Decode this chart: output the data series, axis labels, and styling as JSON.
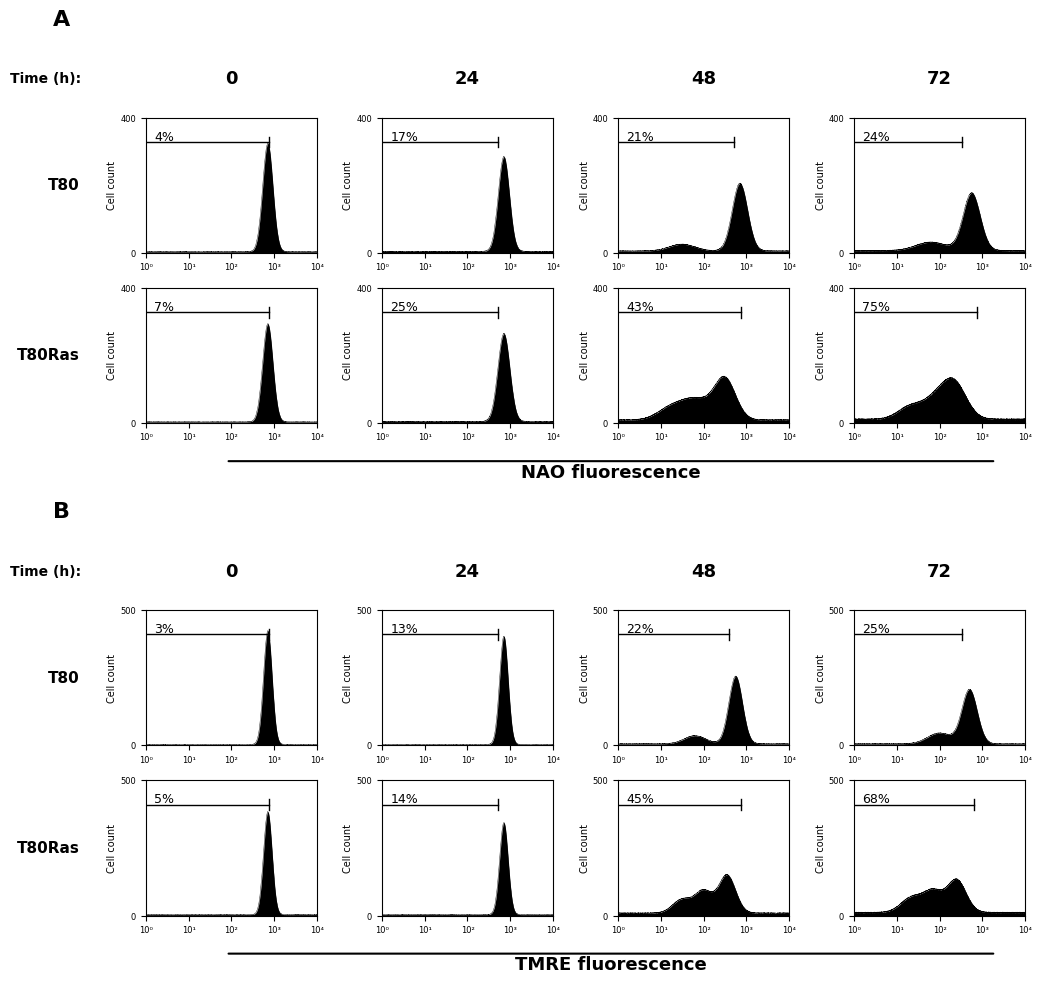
{
  "panel_A": {
    "title_label": "A",
    "time_label": "Time (h):",
    "times": [
      "0",
      "24",
      "48",
      "72"
    ],
    "row_labels": [
      "T80",
      "T80Ras"
    ],
    "xlabel": "NAO fluorescence",
    "ylabel": "Cell count",
    "ylim": 400,
    "percentages": {
      "T80": [
        "4%",
        "17%",
        "21%",
        "24%"
      ],
      "T80Ras": [
        "7%",
        "25%",
        "43%",
        "75%"
      ]
    },
    "gate_end": {
      "T80": [
        0.72,
        0.68,
        0.68,
        0.63
      ],
      "T80Ras": [
        0.72,
        0.68,
        0.72,
        0.72
      ]
    },
    "peak_x": {
      "T80": [
        2.85,
        2.85,
        2.85,
        2.75
      ],
      "T80Ras": [
        2.85,
        2.85,
        2.5,
        2.35
      ]
    },
    "peak_height": {
      "T80": [
        320,
        280,
        200,
        170
      ],
      "T80Ras": [
        290,
        260,
        120,
        100
      ]
    },
    "spread": {
      "T80": [
        0.12,
        0.13,
        0.18,
        0.2
      ],
      "T80Ras": [
        0.12,
        0.14,
        0.25,
        0.28
      ]
    },
    "noise_level": {
      "T80": [
        3,
        4,
        5,
        6
      ],
      "T80Ras": [
        3,
        4,
        8,
        10
      ]
    }
  },
  "panel_B": {
    "title_label": "B",
    "time_label": "Time (h):",
    "times": [
      "0",
      "24",
      "48",
      "72"
    ],
    "row_labels": [
      "T80",
      "T80Ras"
    ],
    "xlabel": "TMRE fluorescence",
    "ylabel": "Cell count",
    "ylim": 500,
    "percentages": {
      "T80": [
        "3%",
        "13%",
        "22%",
        "25%"
      ],
      "T80Ras": [
        "5%",
        "14%",
        "45%",
        "68%"
      ]
    },
    "gate_end": {
      "T80": [
        0.72,
        0.68,
        0.65,
        0.63
      ],
      "T80Ras": [
        0.72,
        0.68,
        0.72,
        0.7
      ]
    },
    "peak_x": {
      "T80": [
        2.85,
        2.85,
        2.75,
        2.7
      ],
      "T80Ras": [
        2.85,
        2.85,
        2.55,
        2.4
      ]
    },
    "peak_height": {
      "T80": [
        420,
        400,
        250,
        200
      ],
      "T80Ras": [
        380,
        340,
        140,
        120
      ]
    },
    "spread": {
      "T80": [
        0.1,
        0.1,
        0.16,
        0.18
      ],
      "T80Ras": [
        0.1,
        0.1,
        0.2,
        0.22
      ]
    },
    "noise_level": {
      "T80": [
        3,
        3,
        5,
        5
      ],
      "T80Ras": [
        3,
        3,
        8,
        10
      ]
    }
  }
}
